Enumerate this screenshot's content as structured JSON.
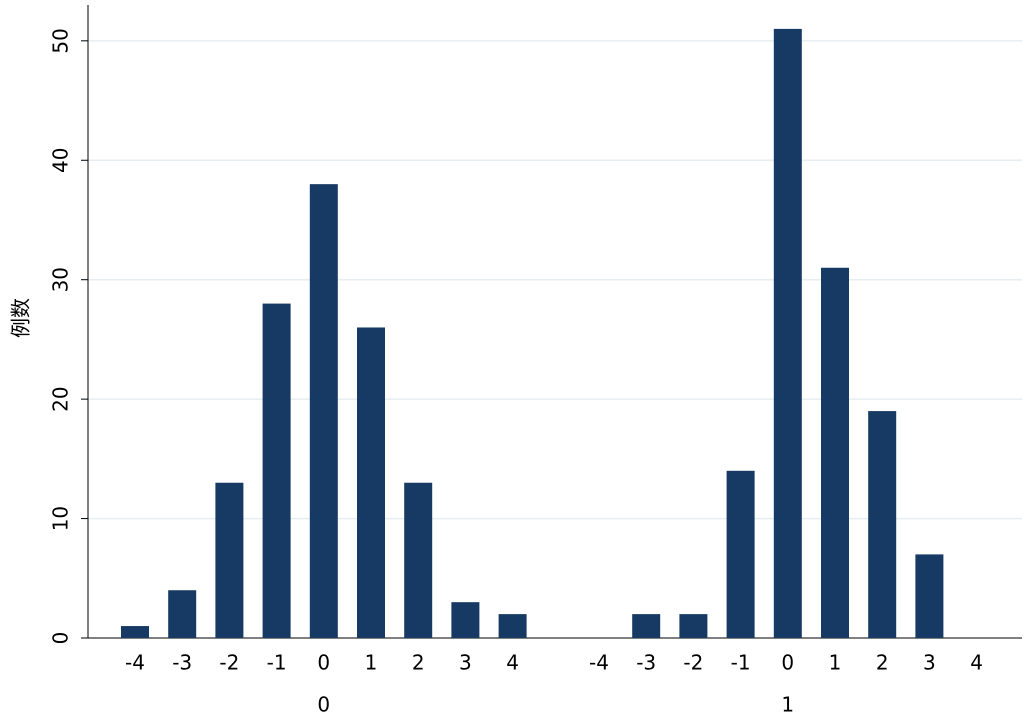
{
  "chart_data": {
    "type": "bar",
    "ylabel": "例数",
    "groups": [
      {
        "name": "0",
        "categories": [
          "-4",
          "-3",
          "-2",
          "-1",
          "0",
          "1",
          "2",
          "3",
          "4"
        ],
        "values": [
          1,
          4,
          13,
          28,
          38,
          26,
          13,
          3,
          2
        ]
      },
      {
        "name": "1",
        "categories": [
          "-4",
          "-3",
          "-2",
          "-1",
          "0",
          "1",
          "2",
          "3",
          "4"
        ],
        "values": [
          0,
          2,
          2,
          14,
          51,
          31,
          19,
          7,
          0
        ]
      }
    ],
    "color": "#173a64",
    "ylim": [
      0,
      53
    ],
    "yticks": [
      0,
      10,
      20,
      30,
      40,
      50
    ],
    "grid": true
  }
}
